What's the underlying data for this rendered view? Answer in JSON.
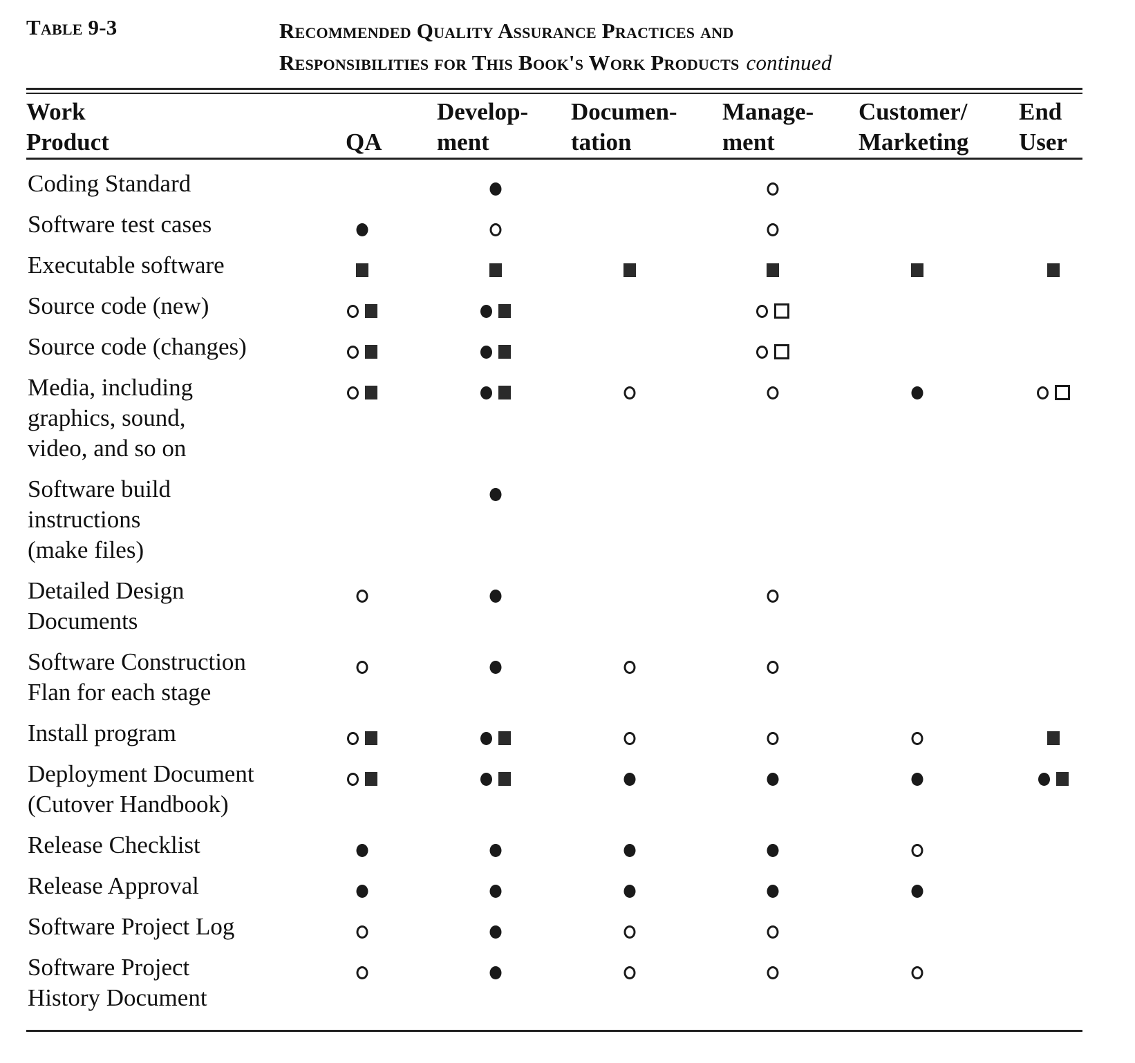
{
  "table_label": "Table 9-3",
  "title_line1": "Recommended Quality Assurance Practices and",
  "title_line2": "Responsibilities for This Book's Work Products",
  "title_suffix": "continued",
  "columns": [
    "Work\nProduct",
    "QA",
    "Develop-\nment",
    "Documen-\ntation",
    "Manage-\nment",
    "Customer/\nMarketing",
    "End\nUser"
  ],
  "symbol_legend_names": {
    "●": "circle-filled",
    "○": "circle-open",
    "■": "square-filled",
    "□": "square-open"
  },
  "rows": [
    {
      "product": "Coding Standard",
      "cells": [
        "",
        "●",
        "",
        "○",
        "",
        ""
      ]
    },
    {
      "product": "Software test cases",
      "cells": [
        "●",
        "○",
        "",
        "○",
        "",
        ""
      ]
    },
    {
      "product": "Executable software",
      "cells": [
        "■",
        "■",
        "■",
        "■",
        "■",
        "■"
      ]
    },
    {
      "product": "Source code (new)",
      "cells": [
        "○■",
        "●■",
        "",
        "○□",
        "",
        ""
      ]
    },
    {
      "product": "Source code (changes)",
      "cells": [
        "○■",
        "●■",
        "",
        "○□",
        "",
        ""
      ]
    },
    {
      "product": "Media, including\ngraphics, sound,\nvideo, and so on",
      "cells": [
        "○■",
        "●■",
        "○",
        "○",
        "●",
        "○□"
      ]
    },
    {
      "product": "Software build\ninstructions\n(make files)",
      "cells": [
        "",
        "●",
        "",
        "",
        "",
        ""
      ]
    },
    {
      "product": "Detailed Design\nDocuments",
      "cells": [
        "○",
        "●",
        "",
        "○",
        "",
        ""
      ]
    },
    {
      "product": "Software Construction\nFlan for each stage",
      "cells": [
        "○",
        "●",
        "○",
        "○",
        "",
        ""
      ]
    },
    {
      "product": "Install program",
      "cells": [
        "○■",
        "●■",
        "○",
        "○",
        "○",
        "■"
      ]
    },
    {
      "product": "Deployment Document\n(Cutover Handbook)",
      "cells": [
        "○■",
        "●■",
        "●",
        "●",
        "●",
        "●■"
      ]
    },
    {
      "product": "Release Checklist",
      "cells": [
        "●",
        "●",
        "●",
        "●",
        "○",
        ""
      ]
    },
    {
      "product": "Release Approval",
      "cells": [
        "●",
        "●",
        "●",
        "●",
        "●",
        ""
      ]
    },
    {
      "product": "Software Project Log",
      "cells": [
        "○",
        "●",
        "○",
        "○",
        "",
        ""
      ]
    },
    {
      "product": "Software Project\nHistory Document",
      "cells": [
        "○",
        "●",
        "○",
        "○",
        "○",
        ""
      ]
    }
  ]
}
